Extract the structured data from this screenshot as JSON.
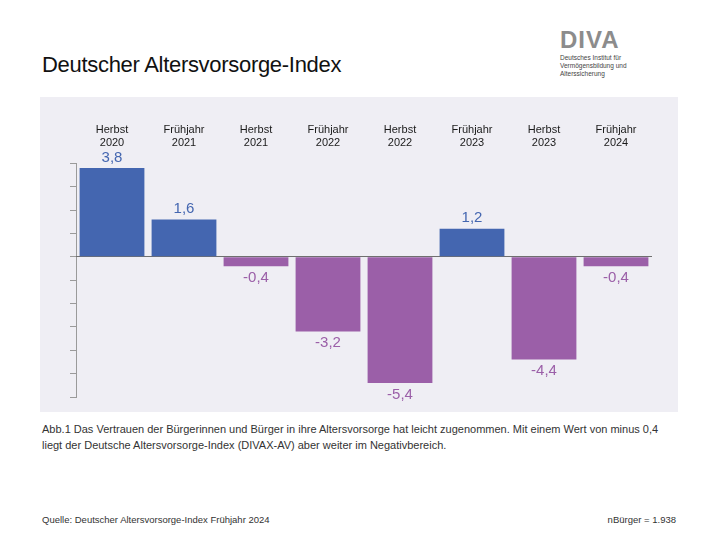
{
  "chart_data": {
    "type": "bar",
    "title": "Deutscher Altersvorsorge-Index",
    "categories": [
      "Herbst 2020",
      "Frühjahr 2021",
      "Herbst 2021",
      "Frühjahr 2022",
      "Herbst 2022",
      "Frühjahr 2023",
      "Herbst 2023",
      "Frühjahr 2024"
    ],
    "values": [
      3.8,
      1.6,
      -0.4,
      -3.2,
      -5.4,
      1.2,
      -4.4,
      -0.4
    ],
    "value_labels": [
      "3,8",
      "1,6",
      "-0,4",
      "-3,2",
      "-5,4",
      "1,2",
      "-4,4",
      "-0,4"
    ],
    "colors": [
      "#4466b0",
      "#4466b0",
      "#9b5fa8",
      "#9b5fa8",
      "#9b5fa8",
      "#4466b0",
      "#9b5fa8",
      "#9b5fa8"
    ],
    "ylim": [
      -6,
      4
    ],
    "yticks": [
      -6,
      -5,
      -4,
      -3,
      -2,
      -1,
      0,
      1,
      2,
      3,
      4
    ],
    "grid": false,
    "data_labels": true,
    "tick_labels": "x"
  },
  "logo": {
    "name": "DIVA",
    "text": [
      "Deutsches Institut für",
      "Vermögensbildung und Alterssicherung"
    ]
  },
  "caption": "Abb.1 Das Vertrauen der Bürgerinnen und Bürger in ihre Altersvorsorge hat leicht zugenommen. Mit einem Wert von minus 0,4 liegt der Deutsche Altersvorsorge-Index (DIVAX-AV) aber weiter im Negativbereich.",
  "source": "Quelle: Deutscher Altersvorsorge-Index Frühjahr 2024",
  "sample_size": "nBürger = 1.938"
}
